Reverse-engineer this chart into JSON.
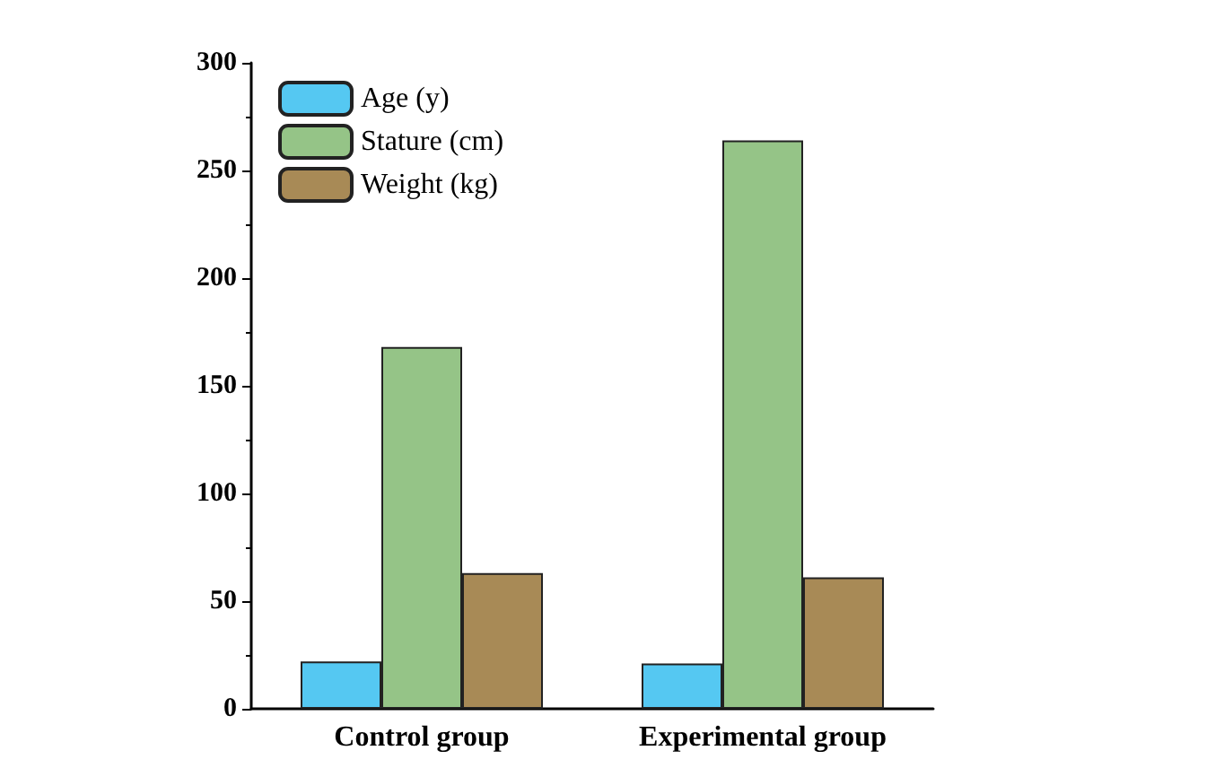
{
  "chart_data": {
    "type": "bar",
    "categories": [
      "Control group",
      "Experimental group"
    ],
    "series": [
      {
        "name": "Age (y)",
        "color": "#55c8f2",
        "values": [
          22,
          21
        ]
      },
      {
        "name": "Stature (cm)",
        "color": "#95c487",
        "values": [
          168,
          264
        ]
      },
      {
        "name": "Weight (kg)",
        "color": "#a88a56",
        "values": [
          63,
          61
        ]
      }
    ],
    "ylim": [
      0,
      300
    ],
    "yticks": [
      0,
      50,
      100,
      150,
      200,
      250,
      300
    ],
    "grid": false,
    "legend": "top left"
  }
}
